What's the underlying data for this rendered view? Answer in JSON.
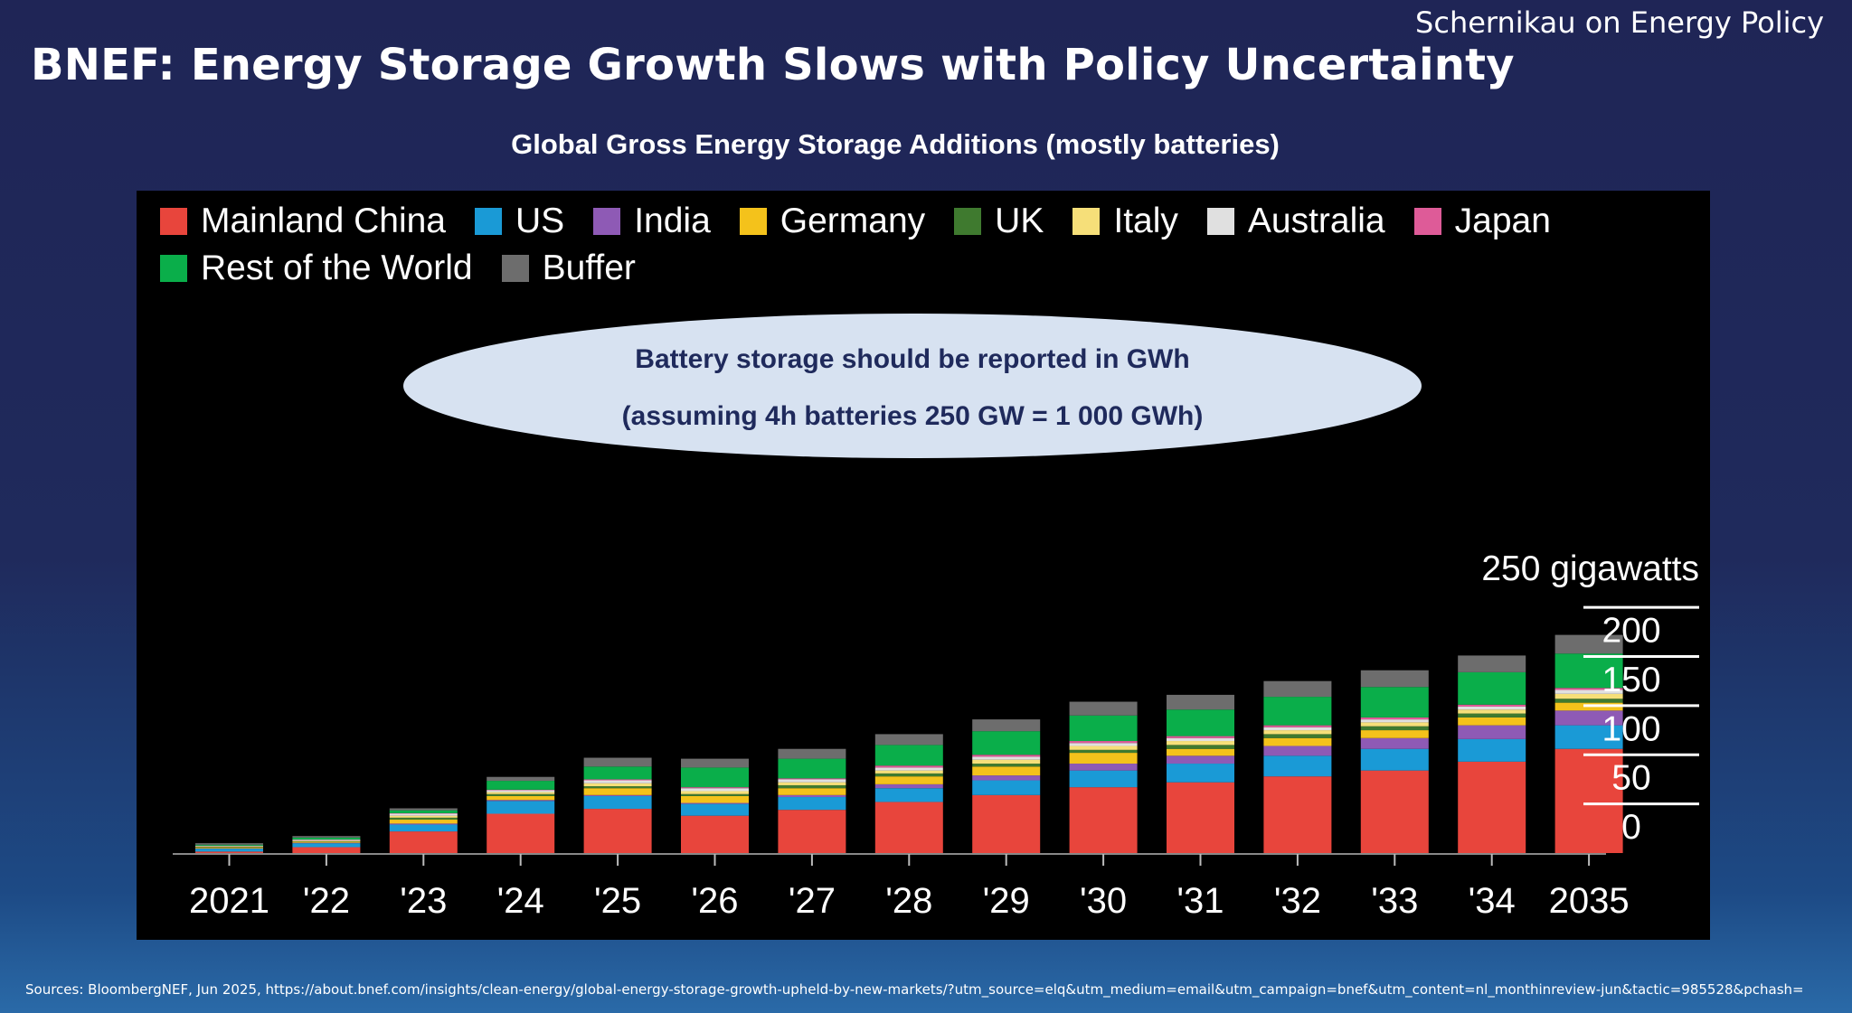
{
  "header": {
    "brand": "Schernikau on Energy Policy",
    "title": "BNEF: Energy Storage Growth Slows with Policy Uncertainty"
  },
  "chart_data": {
    "type": "bar",
    "stacked": true,
    "title": "Global Gross Energy Storage Additions (mostly batteries)",
    "xlabel": "",
    "ylabel": "",
    "unit_label": "250 gigawatts",
    "ylim": [
      0,
      250
    ],
    "yticks": [
      0,
      50,
      100,
      150,
      200
    ],
    "grid": false,
    "legend_position": "top",
    "categories": [
      "2021",
      "'22",
      "'23",
      "'24",
      "'25",
      "'26",
      "'27",
      "'28",
      "'29",
      "'30",
      "'31",
      "'32",
      "'33",
      "'34",
      "2035"
    ],
    "series": [
      {
        "name": "Mainland China",
        "color": "#e8453c",
        "values": [
          1.5,
          6,
          22,
          40,
          45,
          38,
          44,
          52,
          59,
          67,
          72,
          78,
          84,
          93,
          106
        ]
      },
      {
        "name": "US",
        "color": "#1a9ad6",
        "values": [
          3,
          4,
          7,
          13,
          13,
          12,
          13,
          14,
          15,
          17,
          19,
          21,
          22,
          23,
          24
        ]
      },
      {
        "name": "India",
        "color": "#8e5ab5",
        "values": [
          0.3,
          0.5,
          1,
          1,
          1,
          1,
          2,
          4,
          5,
          7,
          8,
          10,
          11,
          14,
          15
        ]
      },
      {
        "name": "Germany",
        "color": "#f4c21b",
        "values": [
          1,
          1,
          4,
          4,
          7,
          7,
          7,
          8,
          9,
          11,
          7,
          8,
          8,
          8,
          8
        ]
      },
      {
        "name": "UK",
        "color": "#3f7a2f",
        "values": [
          0.5,
          0.5,
          2,
          2,
          2,
          2,
          3,
          3,
          3,
          3,
          4,
          4,
          4,
          4,
          4
        ]
      },
      {
        "name": "Italy",
        "color": "#f6df79",
        "values": [
          0.5,
          0.5,
          2,
          2,
          3,
          3,
          3,
          3,
          4,
          4,
          4,
          4,
          4,
          4,
          5
        ]
      },
      {
        "name": "Australia",
        "color": "#e0e0e0",
        "values": [
          0.5,
          1,
          2,
          2,
          3,
          3,
          3,
          3,
          3,
          3,
          3,
          3,
          3,
          3,
          4
        ]
      },
      {
        "name": "Japan",
        "color": "#de5b98",
        "values": [
          0.2,
          0.3,
          0.5,
          0.5,
          1,
          1,
          1,
          2,
          2,
          2,
          2,
          2,
          2,
          2,
          2
        ]
      },
      {
        "name": "Rest of the World",
        "color": "#0aae4a",
        "values": [
          1,
          2,
          3,
          9,
          13,
          20,
          20,
          21,
          24,
          26,
          27,
          29,
          31,
          33,
          35
        ]
      },
      {
        "name": "Buffer",
        "color": "#6d6d6d",
        "values": [
          1.5,
          1.5,
          2,
          4,
          9,
          9,
          10,
          11,
          12,
          14,
          15,
          16,
          17,
          17,
          19
        ]
      }
    ],
    "annotation": {
      "line1": "Battery storage should be reported in GWh",
      "line2": "(assuming 4h batteries 250 GW = 1 000 GWh)"
    }
  },
  "footer": {
    "source": "Sources: BloombergNEF, Jun 2025, https://about.bnef.com/insights/clean-energy/global-energy-storage-growth-upheld-by-new-markets/?utm_source=elq&utm_medium=email&utm_campaign=bnef&utm_content=nl_monthinreview-jun&tactic=985528&pchash="
  }
}
